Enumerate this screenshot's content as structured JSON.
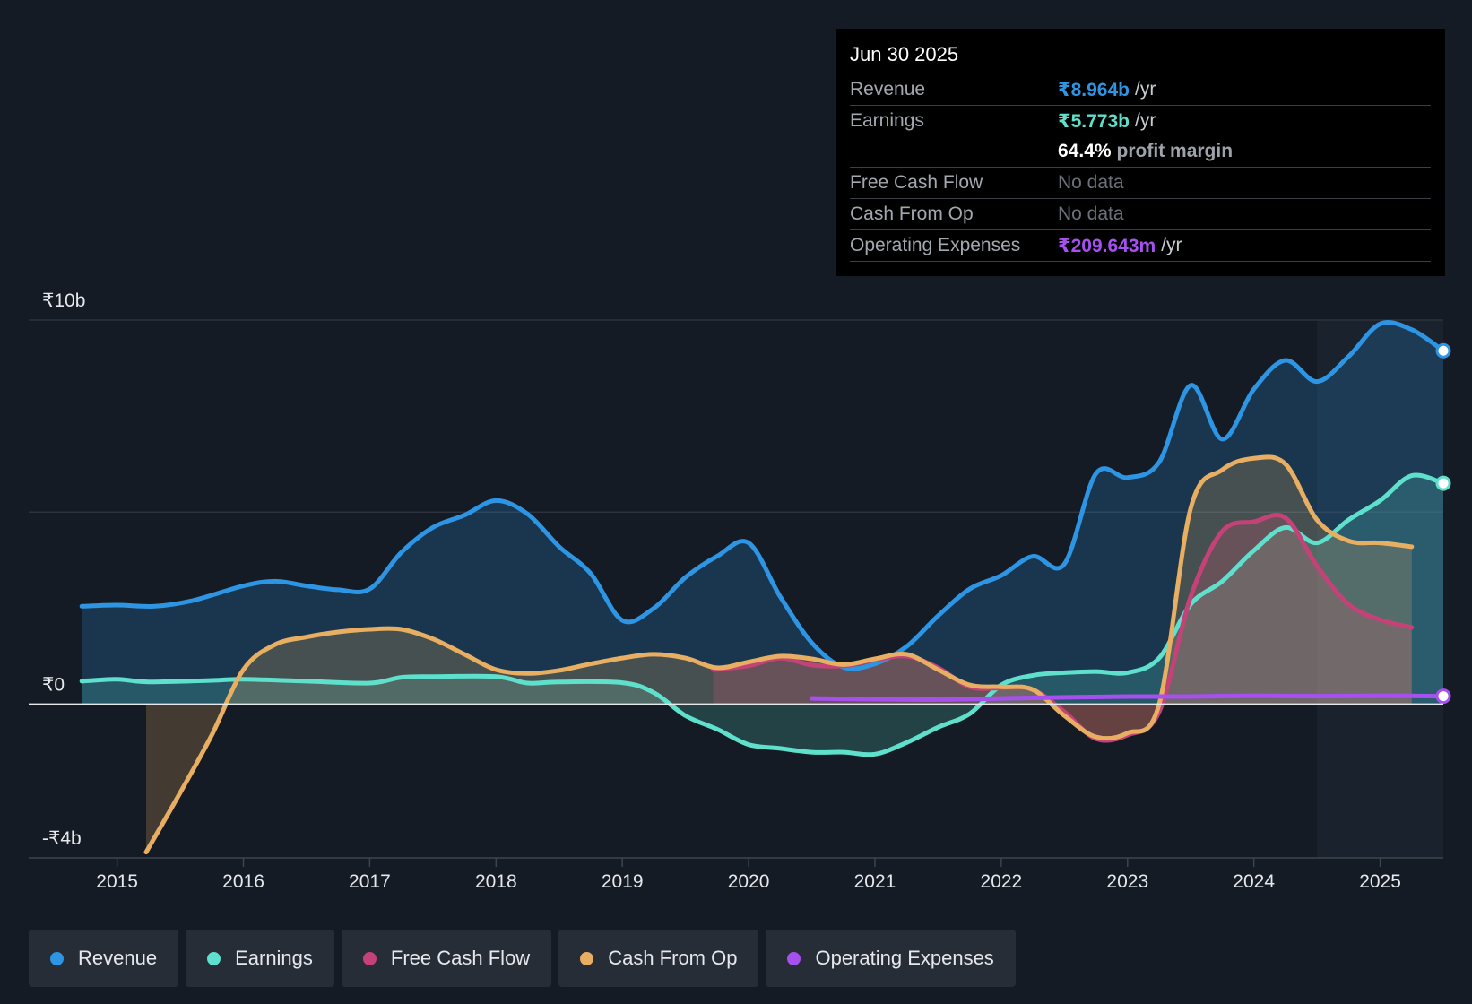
{
  "tooltip": {
    "date": "Jun 30 2025",
    "rows": {
      "revenue": {
        "label": "Revenue",
        "value": "₹8.964b",
        "unit": "/yr"
      },
      "earnings": {
        "label": "Earnings",
        "value": "₹5.773b",
        "unit": "/yr"
      },
      "margin": {
        "value": "64.4%",
        "label": "profit margin"
      },
      "fcf": {
        "label": "Free Cash Flow",
        "value": "No data"
      },
      "cfo": {
        "label": "Cash From Op",
        "value": "No data"
      },
      "opex": {
        "label": "Operating Expenses",
        "value": "₹209.643m",
        "unit": "/yr"
      }
    }
  },
  "legend": [
    {
      "label": "Revenue",
      "color": "#2d95e3"
    },
    {
      "label": "Earnings",
      "color": "#5ee0cc"
    },
    {
      "label": "Free Cash Flow",
      "color": "#c54278"
    },
    {
      "label": "Cash From Op",
      "color": "#e8ae61"
    },
    {
      "label": "Operating Expenses",
      "color": "#a650f0"
    }
  ],
  "chart_data": {
    "type": "line",
    "title": "",
    "ylim": [
      -4,
      10
    ],
    "y_tick_labels": [
      {
        "value": 10,
        "label": "₹10b"
      },
      {
        "value": 0,
        "label": "₹0"
      },
      {
        "value": -4,
        "label": "-₹4b"
      }
    ],
    "x_ticks": [
      2015,
      2016,
      2017,
      2018,
      2019,
      2020,
      2021,
      2022,
      2023,
      2024,
      2025
    ],
    "xlim": [
      2014.3,
      2025.5
    ],
    "highlight_from": 2024.5,
    "series": [
      {
        "name": "Revenue",
        "color": "#2d95e3",
        "points": [
          [
            2014.72,
            2.55
          ],
          [
            2015.0,
            2.58
          ],
          [
            2015.3,
            2.55
          ],
          [
            2015.6,
            2.7
          ],
          [
            2016.0,
            3.08
          ],
          [
            2016.25,
            3.2
          ],
          [
            2016.5,
            3.08
          ],
          [
            2016.75,
            2.98
          ],
          [
            2017.0,
            3.0
          ],
          [
            2017.25,
            3.95
          ],
          [
            2017.5,
            4.6
          ],
          [
            2017.75,
            4.92
          ],
          [
            2018.0,
            5.3
          ],
          [
            2018.25,
            4.95
          ],
          [
            2018.5,
            4.1
          ],
          [
            2018.75,
            3.4
          ],
          [
            2019.0,
            2.18
          ],
          [
            2019.25,
            2.5
          ],
          [
            2019.5,
            3.3
          ],
          [
            2019.75,
            3.85
          ],
          [
            2020.0,
            4.2
          ],
          [
            2020.25,
            2.8
          ],
          [
            2020.5,
            1.6
          ],
          [
            2020.75,
            0.96
          ],
          [
            2021.0,
            1.05
          ],
          [
            2021.25,
            1.5
          ],
          [
            2021.5,
            2.3
          ],
          [
            2021.75,
            3.0
          ],
          [
            2022.0,
            3.35
          ],
          [
            2022.25,
            3.85
          ],
          [
            2022.5,
            3.65
          ],
          [
            2022.75,
            6.0
          ],
          [
            2023.0,
            5.9
          ],
          [
            2023.25,
            6.3
          ],
          [
            2023.5,
            8.3
          ],
          [
            2023.75,
            6.9
          ],
          [
            2024.0,
            8.2
          ],
          [
            2024.25,
            8.95
          ],
          [
            2024.5,
            8.4
          ],
          [
            2024.75,
            9.05
          ],
          [
            2025.0,
            9.9
          ],
          [
            2025.25,
            9.75
          ],
          [
            2025.5,
            9.2
          ]
        ]
      },
      {
        "name": "Earnings",
        "color": "#5ee0cc",
        "points": [
          [
            2014.72,
            0.6
          ],
          [
            2015.0,
            0.65
          ],
          [
            2015.25,
            0.58
          ],
          [
            2015.75,
            0.62
          ],
          [
            2016.0,
            0.65
          ],
          [
            2016.5,
            0.6
          ],
          [
            2017.0,
            0.55
          ],
          [
            2017.25,
            0.7
          ],
          [
            2017.5,
            0.72
          ],
          [
            2018.0,
            0.72
          ],
          [
            2018.25,
            0.55
          ],
          [
            2018.5,
            0.58
          ],
          [
            2019.0,
            0.56
          ],
          [
            2019.25,
            0.3
          ],
          [
            2019.5,
            -0.3
          ],
          [
            2019.75,
            -0.65
          ],
          [
            2020.0,
            -1.05
          ],
          [
            2020.25,
            -1.15
          ],
          [
            2020.5,
            -1.25
          ],
          [
            2020.75,
            -1.25
          ],
          [
            2021.0,
            -1.3
          ],
          [
            2021.25,
            -1.0
          ],
          [
            2021.5,
            -0.6
          ],
          [
            2021.75,
            -0.25
          ],
          [
            2022.0,
            0.5
          ],
          [
            2022.25,
            0.75
          ],
          [
            2022.5,
            0.82
          ],
          [
            2022.75,
            0.85
          ],
          [
            2023.0,
            0.82
          ],
          [
            2023.25,
            1.2
          ],
          [
            2023.5,
            2.6
          ],
          [
            2023.75,
            3.2
          ],
          [
            2024.0,
            4.0
          ],
          [
            2024.25,
            4.6
          ],
          [
            2024.5,
            4.2
          ],
          [
            2024.75,
            4.8
          ],
          [
            2025.0,
            5.3
          ],
          [
            2025.25,
            5.95
          ],
          [
            2025.5,
            5.75
          ]
        ]
      },
      {
        "name": "Free Cash Flow",
        "color": "#c54278",
        "points": [
          [
            2019.72,
            0.9
          ],
          [
            2020.0,
            1.0
          ],
          [
            2020.25,
            1.2
          ],
          [
            2020.5,
            1.02
          ],
          [
            2020.75,
            1.0
          ],
          [
            2021.0,
            1.15
          ],
          [
            2021.25,
            1.25
          ],
          [
            2021.5,
            0.95
          ],
          [
            2021.75,
            0.45
          ],
          [
            2022.0,
            0.42
          ],
          [
            2022.25,
            0.38
          ],
          [
            2022.5,
            -0.2
          ],
          [
            2022.75,
            -0.9
          ],
          [
            2023.0,
            -0.8
          ],
          [
            2023.25,
            -0.2
          ],
          [
            2023.5,
            2.8
          ],
          [
            2023.75,
            4.5
          ],
          [
            2024.0,
            4.75
          ],
          [
            2024.25,
            4.85
          ],
          [
            2024.5,
            3.6
          ],
          [
            2024.75,
            2.6
          ],
          [
            2025.0,
            2.2
          ],
          [
            2025.25,
            2.0
          ]
        ]
      },
      {
        "name": "Cash From Op",
        "color": "#e8ae61",
        "points": [
          [
            2015.23,
            -3.85
          ],
          [
            2015.5,
            -2.3
          ],
          [
            2015.75,
            -0.8
          ],
          [
            2016.0,
            0.9
          ],
          [
            2016.25,
            1.55
          ],
          [
            2016.5,
            1.75
          ],
          [
            2016.75,
            1.88
          ],
          [
            2017.0,
            1.95
          ],
          [
            2017.25,
            1.95
          ],
          [
            2017.5,
            1.7
          ],
          [
            2017.75,
            1.3
          ],
          [
            2018.0,
            0.9
          ],
          [
            2018.25,
            0.8
          ],
          [
            2018.5,
            0.88
          ],
          [
            2018.75,
            1.05
          ],
          [
            2019.0,
            1.2
          ],
          [
            2019.25,
            1.3
          ],
          [
            2019.5,
            1.2
          ],
          [
            2019.75,
            0.95
          ],
          [
            2020.0,
            1.1
          ],
          [
            2020.25,
            1.25
          ],
          [
            2020.5,
            1.18
          ],
          [
            2020.75,
            1.03
          ],
          [
            2021.0,
            1.18
          ],
          [
            2021.25,
            1.3
          ],
          [
            2021.5,
            0.9
          ],
          [
            2021.75,
            0.5
          ],
          [
            2022.0,
            0.45
          ],
          [
            2022.25,
            0.38
          ],
          [
            2022.5,
            -0.3
          ],
          [
            2022.75,
            -0.85
          ],
          [
            2023.0,
            -0.75
          ],
          [
            2023.25,
            0.0
          ],
          [
            2023.5,
            5.1
          ],
          [
            2023.75,
            6.1
          ],
          [
            2024.0,
            6.4
          ],
          [
            2024.25,
            6.25
          ],
          [
            2024.5,
            4.8
          ],
          [
            2024.75,
            4.25
          ],
          [
            2025.0,
            4.2
          ],
          [
            2025.25,
            4.1
          ]
        ]
      },
      {
        "name": "Operating Expenses",
        "color": "#a650f0",
        "points": [
          [
            2020.5,
            0.15
          ],
          [
            2021.0,
            0.13
          ],
          [
            2021.5,
            0.12
          ],
          [
            2022.0,
            0.15
          ],
          [
            2022.5,
            0.18
          ],
          [
            2023.0,
            0.2
          ],
          [
            2023.5,
            0.2
          ],
          [
            2024.0,
            0.22
          ],
          [
            2024.5,
            0.21
          ],
          [
            2025.0,
            0.22
          ],
          [
            2025.5,
            0.21
          ]
        ]
      }
    ]
  }
}
